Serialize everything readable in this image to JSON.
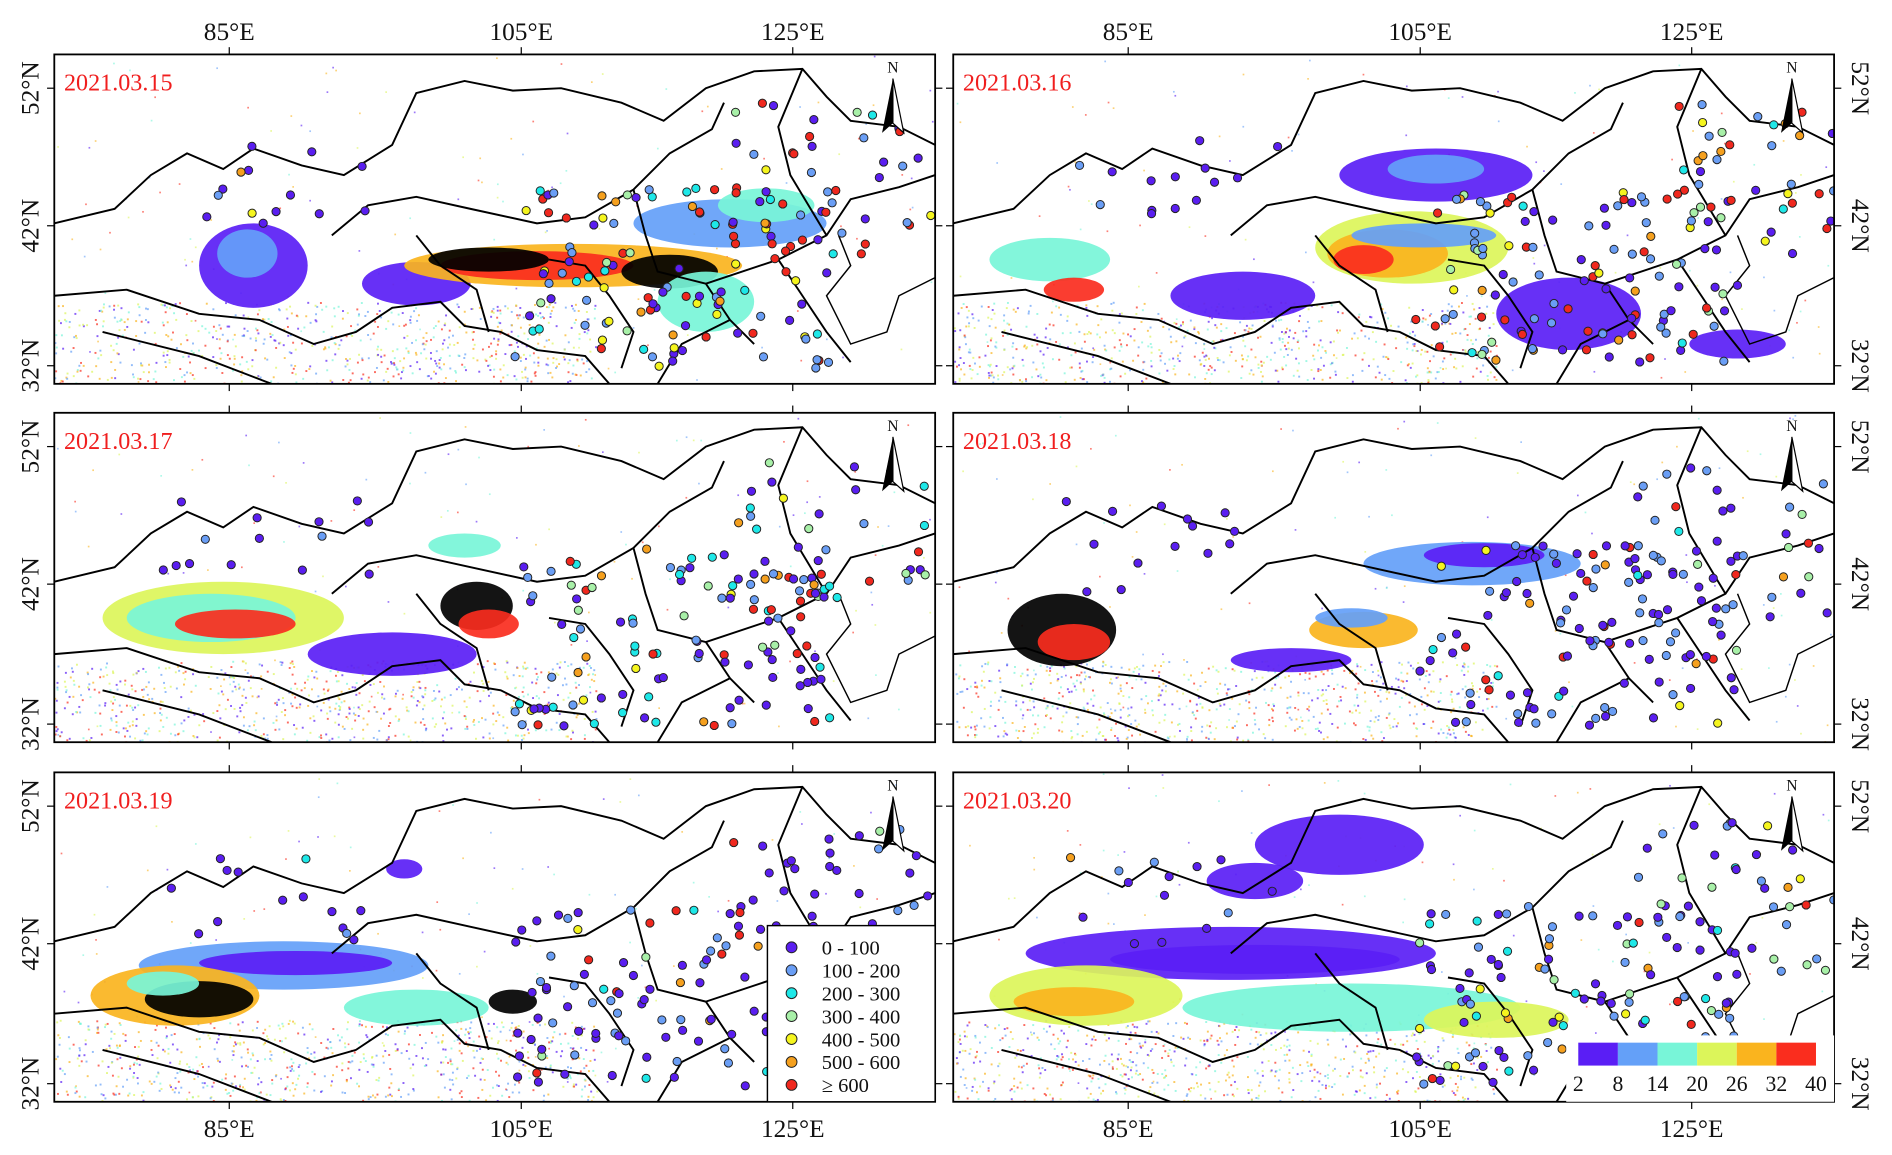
{
  "panels": [
    {
      "date": "2021.03.15"
    },
    {
      "date": "2021.03.16"
    },
    {
      "date": "2021.03.17"
    },
    {
      "date": "2021.03.18"
    },
    {
      "date": "2021.03.19"
    },
    {
      "date": "2021.03.20"
    }
  ],
  "axes": {
    "lon_labels": [
      "85°E",
      "105°E",
      "125°E"
    ],
    "lat_labels": [
      "52°N",
      "42°N",
      "32°N"
    ]
  },
  "north_arrow": {
    "label": "N"
  },
  "station_legend": {
    "items": [
      {
        "label": "0 - 100",
        "color": "#5a1ef0"
      },
      {
        "label": "100 - 200",
        "color": "#6a9ef5"
      },
      {
        "label": "200 - 300",
        "color": "#1ee8e8"
      },
      {
        "label": "300 - 400",
        "color": "#a8f0a8"
      },
      {
        "label": "400 - 500",
        "color": "#f5f51e"
      },
      {
        "label": "500 - 600",
        "color": "#f5a01e"
      },
      {
        "label": "≥ 600",
        "color": "#f0281e"
      }
    ]
  },
  "colorbar": {
    "ticks": [
      "2",
      "8",
      "14",
      "20",
      "26",
      "32",
      "40"
    ],
    "colors": [
      "#5a1ef5",
      "#64a0f8",
      "#78f5d8",
      "#dcf55a",
      "#fab41e",
      "#fa2d1e"
    ]
  }
}
